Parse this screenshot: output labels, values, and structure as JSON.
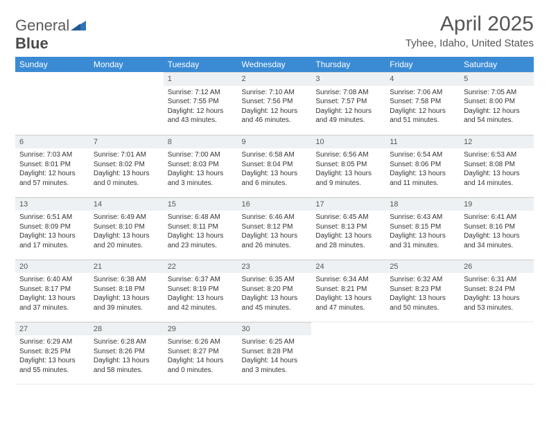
{
  "logo": {
    "part1": "General",
    "part2": "Blue"
  },
  "title": "April 2025",
  "location": "Tyhee, Idaho, United States",
  "colors": {
    "header_bg": "#3b8bd4",
    "header_text": "#ffffff",
    "daynum_bg": "#eef1f3",
    "border": "#d8d8d8",
    "logo_accent": "#2f72b8"
  },
  "day_headers": [
    "Sunday",
    "Monday",
    "Tuesday",
    "Wednesday",
    "Thursday",
    "Friday",
    "Saturday"
  ],
  "weeks": [
    [
      null,
      null,
      {
        "n": "1",
        "sr": "7:12 AM",
        "ss": "7:55 PM",
        "dl": "12 hours and 43 minutes."
      },
      {
        "n": "2",
        "sr": "7:10 AM",
        "ss": "7:56 PM",
        "dl": "12 hours and 46 minutes."
      },
      {
        "n": "3",
        "sr": "7:08 AM",
        "ss": "7:57 PM",
        "dl": "12 hours and 49 minutes."
      },
      {
        "n": "4",
        "sr": "7:06 AM",
        "ss": "7:58 PM",
        "dl": "12 hours and 51 minutes."
      },
      {
        "n": "5",
        "sr": "7:05 AM",
        "ss": "8:00 PM",
        "dl": "12 hours and 54 minutes."
      }
    ],
    [
      {
        "n": "6",
        "sr": "7:03 AM",
        "ss": "8:01 PM",
        "dl": "12 hours and 57 minutes."
      },
      {
        "n": "7",
        "sr": "7:01 AM",
        "ss": "8:02 PM",
        "dl": "13 hours and 0 minutes."
      },
      {
        "n": "8",
        "sr": "7:00 AM",
        "ss": "8:03 PM",
        "dl": "13 hours and 3 minutes."
      },
      {
        "n": "9",
        "sr": "6:58 AM",
        "ss": "8:04 PM",
        "dl": "13 hours and 6 minutes."
      },
      {
        "n": "10",
        "sr": "6:56 AM",
        "ss": "8:05 PM",
        "dl": "13 hours and 9 minutes."
      },
      {
        "n": "11",
        "sr": "6:54 AM",
        "ss": "8:06 PM",
        "dl": "13 hours and 11 minutes."
      },
      {
        "n": "12",
        "sr": "6:53 AM",
        "ss": "8:08 PM",
        "dl": "13 hours and 14 minutes."
      }
    ],
    [
      {
        "n": "13",
        "sr": "6:51 AM",
        "ss": "8:09 PM",
        "dl": "13 hours and 17 minutes."
      },
      {
        "n": "14",
        "sr": "6:49 AM",
        "ss": "8:10 PM",
        "dl": "13 hours and 20 minutes."
      },
      {
        "n": "15",
        "sr": "6:48 AM",
        "ss": "8:11 PM",
        "dl": "13 hours and 23 minutes."
      },
      {
        "n": "16",
        "sr": "6:46 AM",
        "ss": "8:12 PM",
        "dl": "13 hours and 26 minutes."
      },
      {
        "n": "17",
        "sr": "6:45 AM",
        "ss": "8:13 PM",
        "dl": "13 hours and 28 minutes."
      },
      {
        "n": "18",
        "sr": "6:43 AM",
        "ss": "8:15 PM",
        "dl": "13 hours and 31 minutes."
      },
      {
        "n": "19",
        "sr": "6:41 AM",
        "ss": "8:16 PM",
        "dl": "13 hours and 34 minutes."
      }
    ],
    [
      {
        "n": "20",
        "sr": "6:40 AM",
        "ss": "8:17 PM",
        "dl": "13 hours and 37 minutes."
      },
      {
        "n": "21",
        "sr": "6:38 AM",
        "ss": "8:18 PM",
        "dl": "13 hours and 39 minutes."
      },
      {
        "n": "22",
        "sr": "6:37 AM",
        "ss": "8:19 PM",
        "dl": "13 hours and 42 minutes."
      },
      {
        "n": "23",
        "sr": "6:35 AM",
        "ss": "8:20 PM",
        "dl": "13 hours and 45 minutes."
      },
      {
        "n": "24",
        "sr": "6:34 AM",
        "ss": "8:21 PM",
        "dl": "13 hours and 47 minutes."
      },
      {
        "n": "25",
        "sr": "6:32 AM",
        "ss": "8:23 PM",
        "dl": "13 hours and 50 minutes."
      },
      {
        "n": "26",
        "sr": "6:31 AM",
        "ss": "8:24 PM",
        "dl": "13 hours and 53 minutes."
      }
    ],
    [
      {
        "n": "27",
        "sr": "6:29 AM",
        "ss": "8:25 PM",
        "dl": "13 hours and 55 minutes."
      },
      {
        "n": "28",
        "sr": "6:28 AM",
        "ss": "8:26 PM",
        "dl": "13 hours and 58 minutes."
      },
      {
        "n": "29",
        "sr": "6:26 AM",
        "ss": "8:27 PM",
        "dl": "14 hours and 0 minutes."
      },
      {
        "n": "30",
        "sr": "6:25 AM",
        "ss": "8:28 PM",
        "dl": "14 hours and 3 minutes."
      },
      null,
      null,
      null
    ]
  ],
  "labels": {
    "sunrise": "Sunrise:",
    "sunset": "Sunset:",
    "daylight": "Daylight:"
  }
}
